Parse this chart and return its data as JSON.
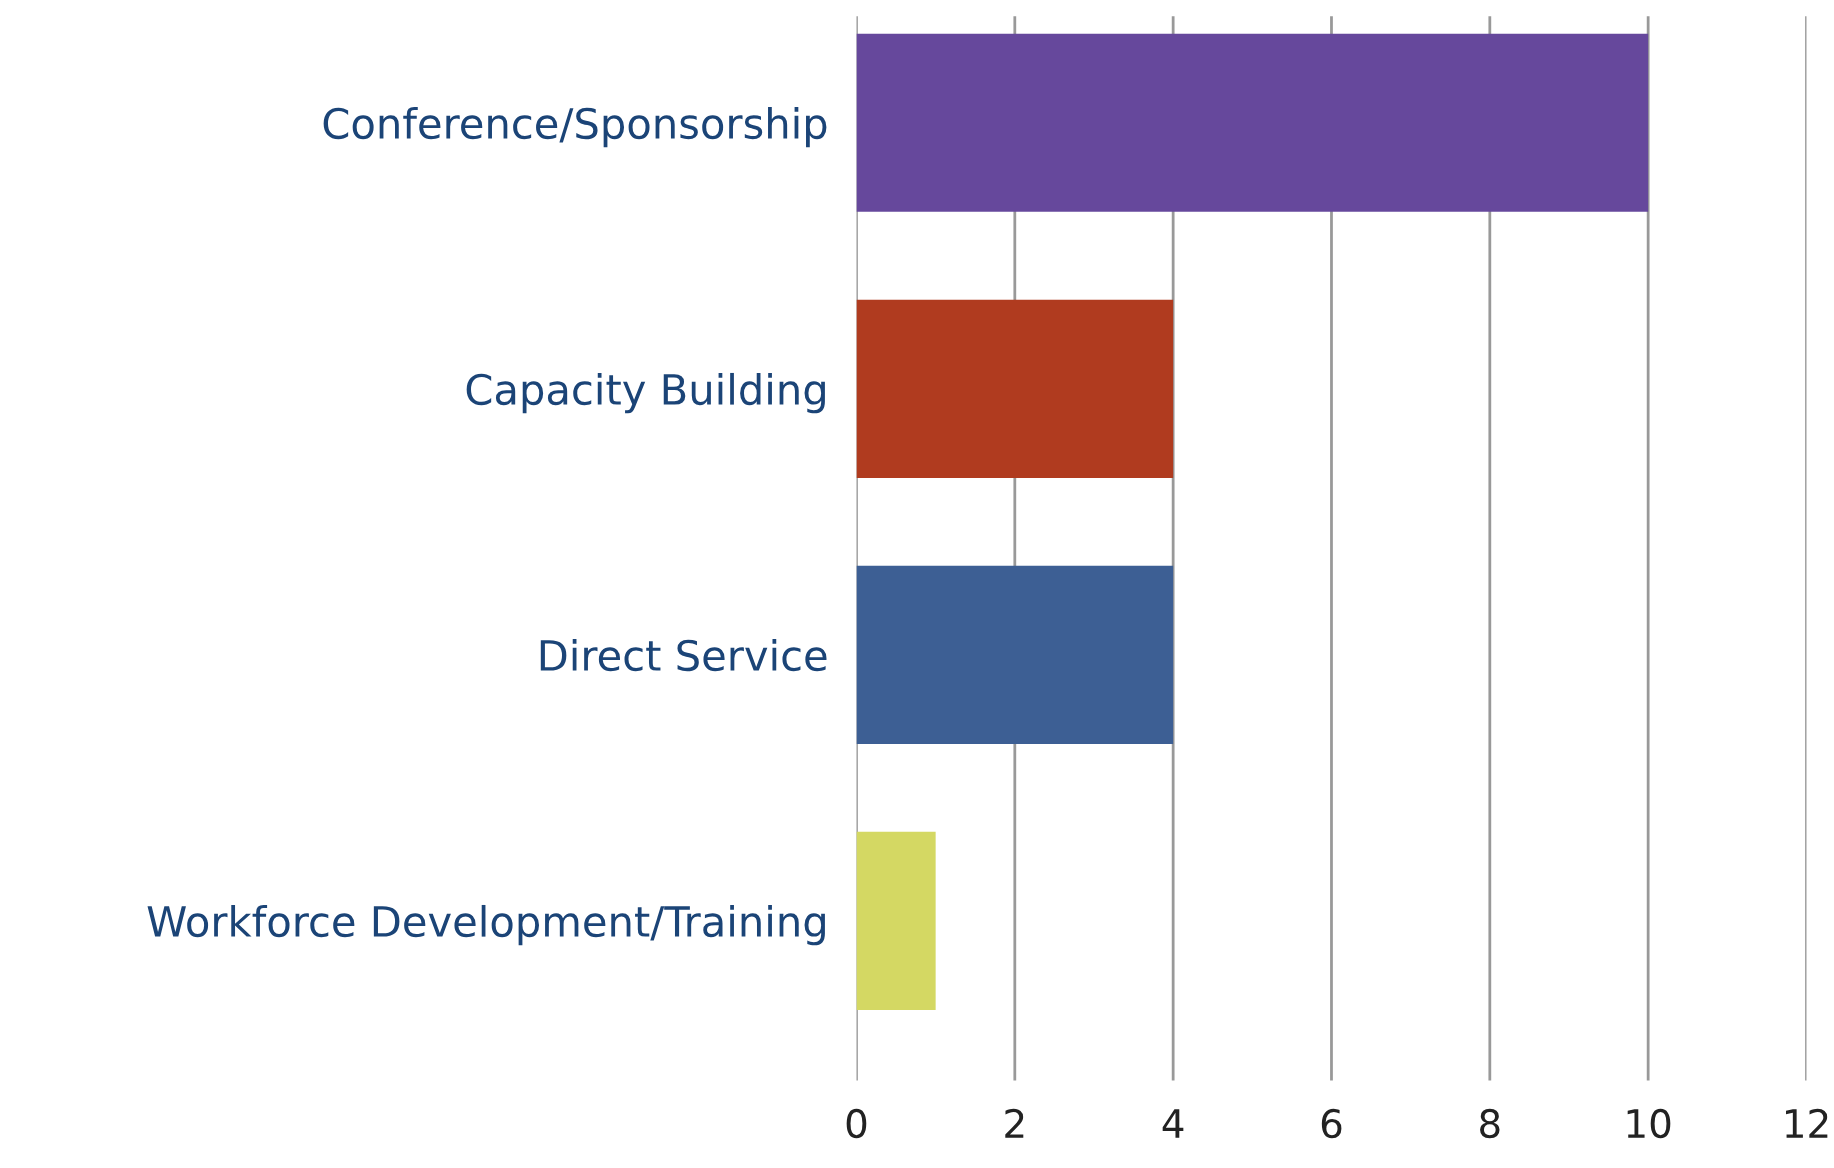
{
  "chart_data": {
    "type": "bar",
    "orientation": "horizontal",
    "categories": [
      "Conference/Sponsorship",
      "Capacity Building",
      "Direct Service",
      "Workforce Development/Training"
    ],
    "values": [
      10,
      4,
      4,
      1
    ],
    "colors": [
      "#66489c",
      "#b03b1f",
      "#3d5f94",
      "#d4d863"
    ],
    "xlim": [
      0,
      12
    ],
    "xticks": [
      0,
      2,
      4,
      6,
      8,
      10,
      12
    ],
    "grid": "x",
    "legend": false
  }
}
